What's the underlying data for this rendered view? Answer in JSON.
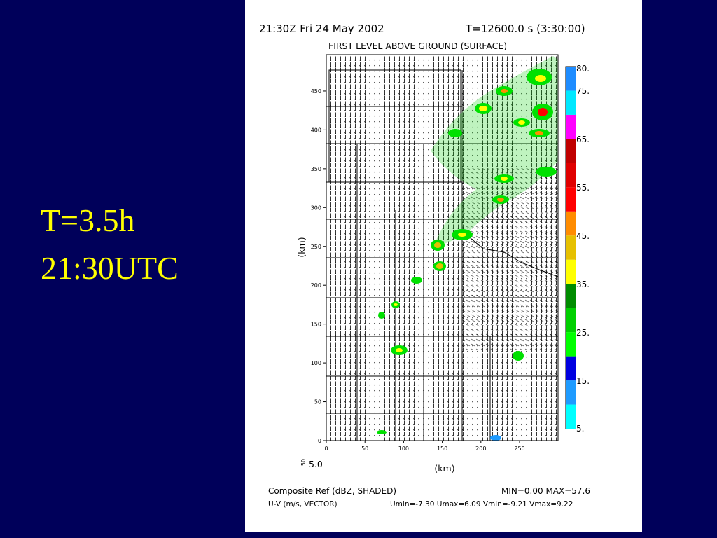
{
  "slide": {
    "caption": [
      "T=3.5h",
      "21:30UTC"
    ]
  },
  "plot": {
    "title_left": "21:30Z Fri 24 May 2002",
    "title_right": "T=12600.0 s (3:30:00)",
    "subtitle": "FIRST LEVEL ABOVE GROUND (SURFACE)",
    "y_axis_label": "(km)",
    "x_axis_label": "(km)",
    "yticks": [
      "0",
      "50",
      "100",
      "150",
      "200",
      "250",
      "300",
      "350",
      "400",
      "450"
    ],
    "xticks": [
      "0",
      "50",
      "100",
      "150",
      "200",
      "250"
    ],
    "vector_scale": [
      "50",
      "5.0"
    ],
    "colorbar": {
      "colors": [
        "#00ffff",
        "#1e9bff",
        "#0000e0",
        "#00ff00",
        "#00d000",
        "#008c00",
        "#ffff00",
        "#e6c000",
        "#ff8c00",
        "#ff0000",
        "#e00000",
        "#c00000",
        "#ff00ff",
        "#00e8ff",
        "#1e8cff"
      ],
      "labels": [
        "80.",
        "75.",
        "65.",
        "55.",
        "45.",
        "35.",
        "25.",
        "15.",
        "5."
      ]
    },
    "footer": {
      "field1": "Composite Ref (dBZ, SHADED)",
      "range1": "MIN=0.00 MAX=57.6",
      "field2": "U-V (m/s, VECTOR)",
      "range2": "Umin=-7.30 Umax=6.09 Vmin=-9.21 Vmax=9.22"
    }
  }
}
